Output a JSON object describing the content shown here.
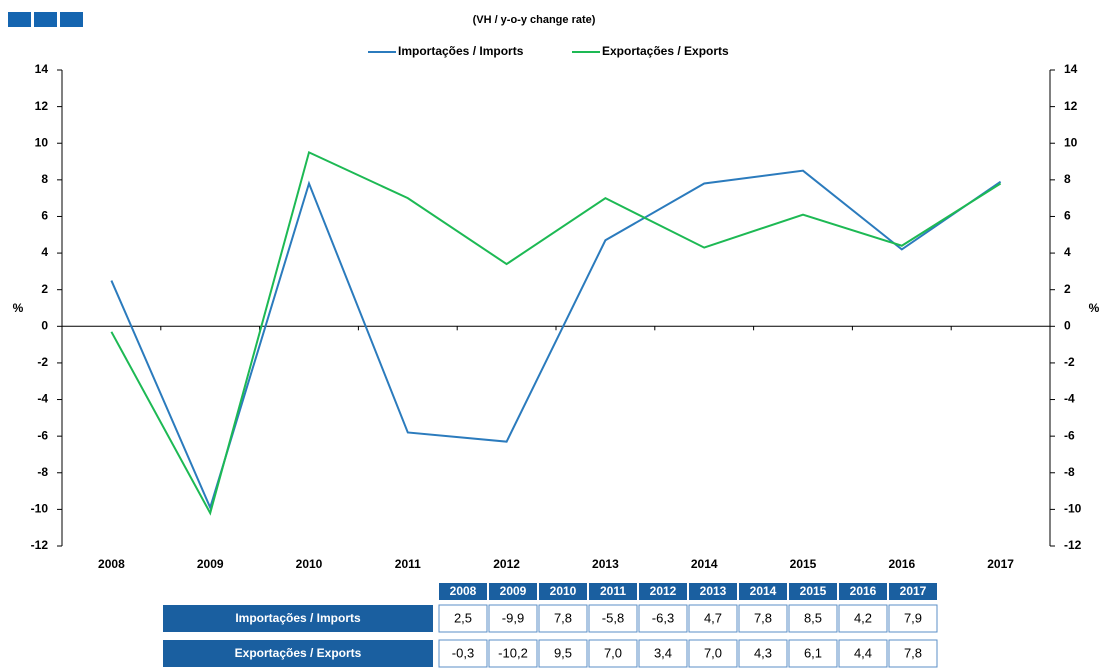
{
  "chart_data": {
    "type": "line",
    "title": "(VH / y-o-y change rate)",
    "ylabel": "%",
    "y2label": "%",
    "categories": [
      "2008",
      "2009",
      "2010",
      "2011",
      "2012",
      "2013",
      "2014",
      "2015",
      "2016",
      "2017"
    ],
    "series": [
      {
        "name": "Importações / Imports",
        "color": "#2b7bbd",
        "values": [
          2.5,
          -9.9,
          7.8,
          -5.8,
          -6.3,
          4.7,
          7.8,
          8.5,
          4.2,
          7.9
        ],
        "value_labels": [
          "2,5",
          "-9,9",
          "7,8",
          "-5,8",
          "-6,3",
          "4,7",
          "7,8",
          "8,5",
          "4,2",
          "7,9"
        ]
      },
      {
        "name": "Exportações / Exports",
        "color": "#1db954",
        "values": [
          -0.3,
          -10.2,
          9.5,
          7.0,
          3.4,
          7.0,
          4.3,
          6.1,
          4.4,
          7.8
        ],
        "value_labels": [
          "-0,3",
          "-10,2",
          "9,5",
          "7,0",
          "3,4",
          "7,0",
          "4,3",
          "6,1",
          "4,4",
          "7,8"
        ]
      }
    ],
    "ylim": [
      -12,
      14
    ],
    "yticks": [
      -12,
      -10,
      -8,
      -6,
      -4,
      -2,
      0,
      2,
      4,
      6,
      8,
      10,
      12,
      14
    ],
    "y2lim": [
      -12,
      14
    ],
    "y2ticks": [
      -12,
      -10,
      -8,
      -6,
      -4,
      -2,
      0,
      2,
      4,
      6,
      8,
      10,
      12,
      14
    ],
    "legend": "top"
  }
}
